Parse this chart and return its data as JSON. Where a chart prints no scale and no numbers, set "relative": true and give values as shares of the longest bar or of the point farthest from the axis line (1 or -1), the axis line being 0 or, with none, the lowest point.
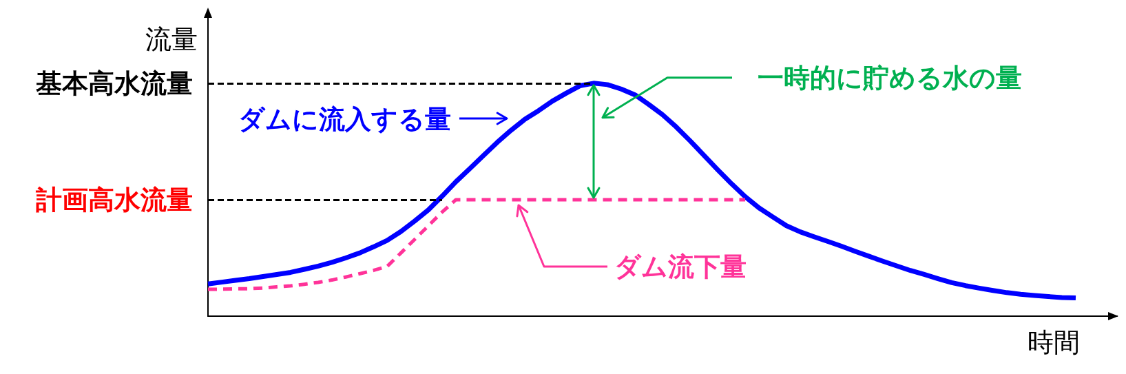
{
  "chart_data": {
    "type": "line",
    "relative": true,
    "ylabel": "流量",
    "xlabel": "時間",
    "marker": "none",
    "categories": [
      null,
      null,
      null,
      null,
      null,
      null,
      null,
      null,
      null,
      null,
      null,
      null,
      null,
      null,
      null,
      null,
      null,
      null,
      null,
      null,
      null,
      null,
      null,
      null,
      null,
      null,
      null,
      null,
      null,
      null,
      null,
      null,
      null,
      null,
      null,
      null,
      null,
      null,
      null,
      null,
      null,
      null,
      null,
      null,
      null,
      null,
      null,
      null,
      null,
      null,
      null,
      null,
      null,
      null,
      null,
      null,
      null,
      null,
      null,
      null,
      null,
      null,
      null,
      null,
      null,
      null,
      null
    ],
    "series": [
      {
        "name": "ダムに流入する量",
        "color": "#0000ff",
        "line_style": "solid",
        "values": [
          0.138,
          0.146,
          0.154,
          0.161,
          0.17,
          0.179,
          0.188,
          0.201,
          0.215,
          0.231,
          0.25,
          0.271,
          0.297,
          0.325,
          0.363,
          0.408,
          0.456,
          0.515,
          0.577,
          0.633,
          0.69,
          0.746,
          0.798,
          0.845,
          0.882,
          0.923,
          0.957,
          0.989,
          1,
          0.994,
          0.975,
          0.95,
          0.909,
          0.865,
          0.812,
          0.753,
          0.691,
          0.629,
          0.569,
          0.513,
          0.465,
          0.426,
          0.388,
          0.362,
          0.341,
          0.321,
          0.3,
          0.278,
          0.257,
          0.236,
          0.216,
          0.196,
          0.179,
          0.161,
          0.144,
          0.131,
          0.12,
          0.11,
          0.101,
          0.094,
          0.089,
          0.084,
          0.08,
          0.078,
          null,
          null,
          null
        ]
      },
      {
        "name": "ダム流下量",
        "color": "#ff3399",
        "line_style": "dashed",
        "values": [
          0.115,
          0.116,
          0.117,
          0.118,
          0.121,
          0.126,
          0.13,
          0.137,
          0.145,
          0.155,
          0.168,
          0.182,
          0.196,
          0.213,
          0.271,
          0.329,
          0.388,
          0.447,
          0.5,
          0.5,
          0.5,
          0.5,
          0.5,
          0.5,
          0.5,
          0.5,
          0.5,
          0.5,
          0.5,
          0.5,
          0.5,
          0.5,
          0.5,
          0.5,
          0.5,
          0.5,
          0.5,
          0.5,
          0.5,
          0.5,
          null,
          null,
          null,
          null,
          null,
          null,
          null,
          null,
          null,
          null,
          null,
          null,
          null,
          null,
          null,
          null,
          null,
          null,
          null,
          null,
          null,
          null,
          null,
          null,
          null,
          null,
          null
        ]
      }
    ],
    "ref_lines": [
      {
        "axis": "y",
        "value": 1,
        "label": "基本高水流量",
        "color": "#000000",
        "line_style": "dashed"
      },
      {
        "axis": "y",
        "value": 0.5,
        "label": "計画高水流量",
        "color": "#000000",
        "line_style": "dashed"
      }
    ],
    "annotations": [
      "一時的に貯める水の量"
    ]
  }
}
